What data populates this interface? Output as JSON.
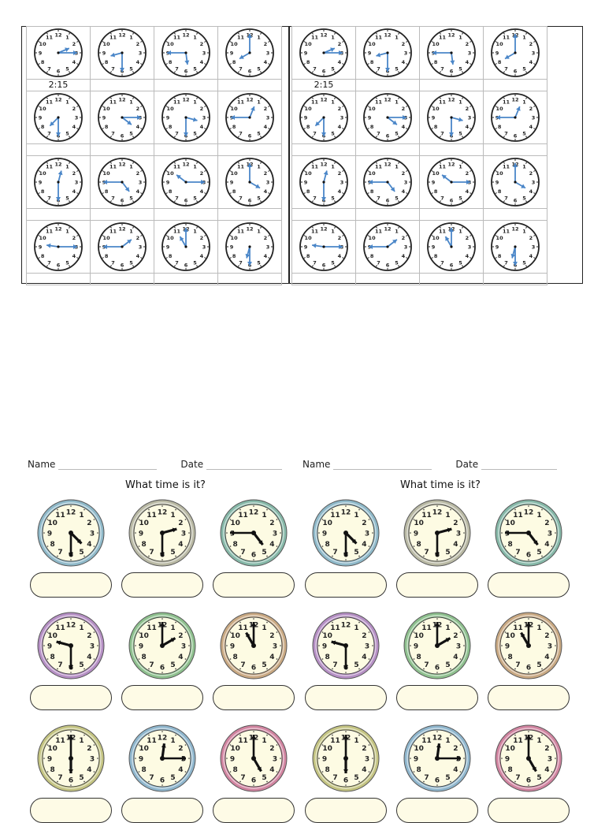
{
  "top_worksheet": {
    "copies": 2,
    "example_answer": "2:15",
    "hand_color": "#4a86c8",
    "clocks": [
      {
        "row": 1,
        "col": 1,
        "time": "2:15",
        "answer": "2:15"
      },
      {
        "row": 1,
        "col": 2,
        "time": "8:30",
        "answer": ""
      },
      {
        "row": 1,
        "col": 3,
        "time": "5:45",
        "answer": ""
      },
      {
        "row": 1,
        "col": 4,
        "time": "8:00",
        "answer": ""
      },
      {
        "row": 2,
        "col": 1,
        "time": "7:30",
        "answer": ""
      },
      {
        "row": 2,
        "col": 2,
        "time": "4:15",
        "answer": ""
      },
      {
        "row": 2,
        "col": 3,
        "time": "3:30",
        "answer": ""
      },
      {
        "row": 2,
        "col": 4,
        "time": "12:45",
        "answer": ""
      },
      {
        "row": 3,
        "col": 1,
        "time": "12:30",
        "answer": ""
      },
      {
        "row": 3,
        "col": 2,
        "time": "4:45",
        "answer": ""
      },
      {
        "row": 3,
        "col": 3,
        "time": "10:15",
        "answer": ""
      },
      {
        "row": 3,
        "col": 4,
        "time": "4:00",
        "answer": ""
      },
      {
        "row": 4,
        "col": 1,
        "time": "9:15",
        "answer": ""
      },
      {
        "row": 4,
        "col": 2,
        "time": "1:45",
        "answer": ""
      },
      {
        "row": 4,
        "col": 3,
        "time": "11:00",
        "answer": ""
      },
      {
        "row": 4,
        "col": 4,
        "time": "6:30",
        "answer": ""
      }
    ]
  },
  "bottom_worksheet": {
    "name_label": "Name",
    "date_label": "Date",
    "title": "What time is it?",
    "face_color": "#fdfbe3",
    "clocks": [
      {
        "time": "4:30",
        "frame": "#8fb9c9"
      },
      {
        "time": "2:30",
        "frame": "#b9b9a4"
      },
      {
        "time": "4:45",
        "frame": "#86b8a8"
      },
      {
        "time": "9:30",
        "frame": "#b58fc4"
      },
      {
        "time": "2:00",
        "frame": "#8ec08e"
      },
      {
        "time": "11:00",
        "frame": "#c9a983"
      },
      {
        "time": "6:00",
        "frame": "#c4c482"
      },
      {
        "time": "12:15",
        "frame": "#8fb6cd"
      },
      {
        "time": "5:00",
        "frame": "#d184a0"
      }
    ]
  }
}
